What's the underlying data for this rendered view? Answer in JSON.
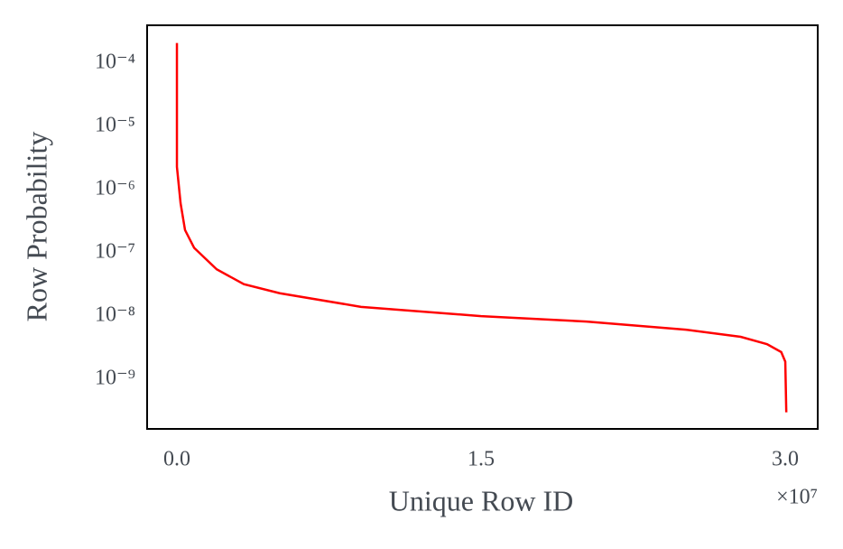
{
  "chart_data": {
    "type": "line",
    "x_label": "Unique Row ID",
    "y_label": "Row Probability",
    "x_offset_label": "×10⁷",
    "x": [
      0,
      0,
      180000,
      400000,
      850000,
      1960000,
      3300000,
      5070000,
      9080000,
      15000000,
      20200000,
      25100000,
      27800000,
      29100000,
      29800000,
      30000000,
      30050000
    ],
    "series": [
      {
        "color": "#ff0000",
        "values": [
          0.00021,
          2.3e-06,
          6.1e-07,
          2.3e-07,
          1.2e-07,
          5.5e-08,
          3.2e-08,
          2.3e-08,
          1.4e-08,
          1e-08,
          8.2e-09,
          6.1e-09,
          4.7e-09,
          3.6e-09,
          2.7e-09,
          1.9e-09,
          3e-10
        ]
      }
    ],
    "xlim": [
      -1470000,
      31600000
    ],
    "xticks": [
      {
        "value": 0,
        "label": "0.0"
      },
      {
        "value": 15000000,
        "label": "1.5"
      },
      {
        "value": 30000000,
        "label": "3.0"
      }
    ],
    "ylim": [
      1.64e-10,
      0.0004
    ],
    "yscale": "log",
    "yticks": [
      {
        "value": 0.0001,
        "label": "10⁻⁴"
      },
      {
        "value": 1e-05,
        "label": "10⁻⁵"
      },
      {
        "value": 1e-06,
        "label": "10⁻⁶"
      },
      {
        "value": 1e-07,
        "label": "10⁻⁷"
      },
      {
        "value": 1e-08,
        "label": "10⁻⁸"
      },
      {
        "value": 1e-09,
        "label": "10⁻⁹"
      }
    ],
    "grid": false
  }
}
